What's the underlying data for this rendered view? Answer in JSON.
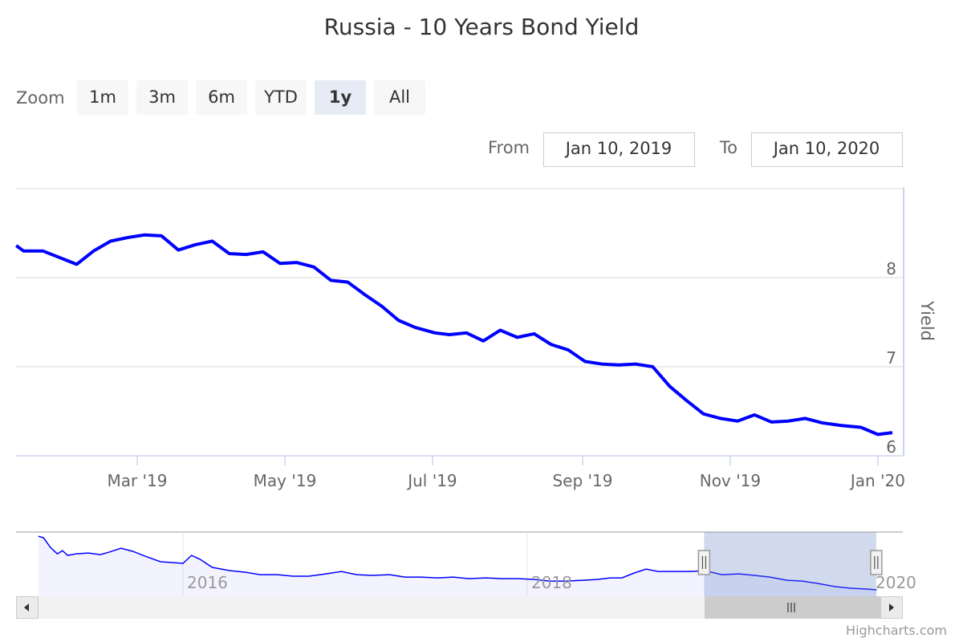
{
  "chart_data": {
    "type": "line",
    "title": "Russia - 10 Years Bond Yield",
    "ylabel": "Yield",
    "xlabel": "",
    "ylim": [
      6,
      9
    ],
    "yticks": [
      "6",
      "7",
      "8"
    ],
    "grid": true,
    "xticks": [
      {
        "date": "2019-03-01",
        "label": "Mar '19"
      },
      {
        "date": "2019-05-01",
        "label": "May '19"
      },
      {
        "date": "2019-07-01",
        "label": "Jul '19"
      },
      {
        "date": "2019-09-01",
        "label": "Sep '19"
      },
      {
        "date": "2019-11-01",
        "label": "Nov '19"
      },
      {
        "date": "2020-01-01",
        "label": "Jan '20"
      }
    ],
    "series": [
      {
        "name": "Yield",
        "color": "#0000ff",
        "points": [
          [
            "2019-01-10",
            8.36
          ],
          [
            "2019-01-13",
            8.3
          ],
          [
            "2019-01-21",
            8.3
          ],
          [
            "2019-02-04",
            8.15
          ],
          [
            "2019-02-11",
            8.3
          ],
          [
            "2019-02-18",
            8.41
          ],
          [
            "2019-02-25",
            8.45
          ],
          [
            "2019-03-04",
            8.48
          ],
          [
            "2019-03-11",
            8.47
          ],
          [
            "2019-03-18",
            8.31
          ],
          [
            "2019-03-25",
            8.37
          ],
          [
            "2019-04-01",
            8.41
          ],
          [
            "2019-04-08",
            8.27
          ],
          [
            "2019-04-15",
            8.26
          ],
          [
            "2019-04-22",
            8.29
          ],
          [
            "2019-04-29",
            8.16
          ],
          [
            "2019-05-06",
            8.17
          ],
          [
            "2019-05-13",
            8.12
          ],
          [
            "2019-05-20",
            7.97
          ],
          [
            "2019-05-27",
            7.95
          ],
          [
            "2019-06-03",
            7.81
          ],
          [
            "2019-06-10",
            7.68
          ],
          [
            "2019-06-17",
            7.52
          ],
          [
            "2019-06-24",
            7.44
          ],
          [
            "2019-07-02",
            7.38
          ],
          [
            "2019-07-08",
            7.36
          ],
          [
            "2019-07-15",
            7.38
          ],
          [
            "2019-07-22",
            7.29
          ],
          [
            "2019-07-29",
            7.41
          ],
          [
            "2019-08-05",
            7.33
          ],
          [
            "2019-08-12",
            7.37
          ],
          [
            "2019-08-19",
            7.25
          ],
          [
            "2019-08-26",
            7.19
          ],
          [
            "2019-09-02",
            7.06
          ],
          [
            "2019-09-09",
            7.03
          ],
          [
            "2019-09-16",
            7.02
          ],
          [
            "2019-09-23",
            7.03
          ],
          [
            "2019-09-30",
            7.0
          ],
          [
            "2019-10-07",
            6.78
          ],
          [
            "2019-10-14",
            6.62
          ],
          [
            "2019-10-21",
            6.47
          ],
          [
            "2019-10-28",
            6.42
          ],
          [
            "2019-11-04",
            6.39
          ],
          [
            "2019-11-11",
            6.46
          ],
          [
            "2019-11-18",
            6.38
          ],
          [
            "2019-11-25",
            6.39
          ],
          [
            "2019-12-02",
            6.42
          ],
          [
            "2019-12-09",
            6.37
          ],
          [
            "2019-12-17",
            6.34
          ],
          [
            "2019-12-25",
            6.32
          ],
          [
            "2020-01-01",
            6.24
          ],
          [
            "2020-01-07",
            6.26
          ]
        ]
      }
    ],
    "navigator": {
      "xlabels": [
        "2016",
        "2018",
        "2020"
      ],
      "ylim": [
        5.5,
        12.9
      ],
      "selected_range": [
        "2019-01-10",
        "2020-01-10"
      ],
      "points": [
        [
          2015.16,
          12.42
        ],
        [
          2015.19,
          12.24
        ],
        [
          2015.23,
          11.13
        ],
        [
          2015.27,
          10.39
        ],
        [
          2015.3,
          10.76
        ],
        [
          2015.33,
          10.21
        ],
        [
          2015.38,
          10.39
        ],
        [
          2015.45,
          10.48
        ],
        [
          2015.52,
          10.3
        ],
        [
          2015.57,
          10.58
        ],
        [
          2015.64,
          11.04
        ],
        [
          2015.71,
          10.67
        ],
        [
          2015.78,
          10.12
        ],
        [
          2015.87,
          9.48
        ],
        [
          2015.94,
          9.39
        ],
        [
          2016.0,
          9.29
        ],
        [
          2016.05,
          10.21
        ],
        [
          2016.1,
          9.75
        ],
        [
          2016.17,
          8.83
        ],
        [
          2016.27,
          8.46
        ],
        [
          2016.36,
          8.27
        ],
        [
          2016.45,
          7.99
        ],
        [
          2016.55,
          7.99
        ],
        [
          2016.64,
          7.81
        ],
        [
          2016.73,
          7.81
        ],
        [
          2016.83,
          8.08
        ],
        [
          2016.92,
          8.36
        ],
        [
          2017.01,
          7.99
        ],
        [
          2017.1,
          7.9
        ],
        [
          2017.2,
          7.99
        ],
        [
          2017.29,
          7.71
        ],
        [
          2017.38,
          7.71
        ],
        [
          2017.48,
          7.62
        ],
        [
          2017.57,
          7.71
        ],
        [
          2017.66,
          7.53
        ],
        [
          2017.76,
          7.62
        ],
        [
          2017.85,
          7.53
        ],
        [
          2017.94,
          7.53
        ],
        [
          2018.04,
          7.44
        ],
        [
          2018.13,
          7.25
        ],
        [
          2018.22,
          7.25
        ],
        [
          2018.32,
          7.34
        ],
        [
          2018.41,
          7.44
        ],
        [
          2018.48,
          7.62
        ],
        [
          2018.55,
          7.62
        ],
        [
          2018.62,
          8.17
        ],
        [
          2018.69,
          8.63
        ],
        [
          2018.76,
          8.36
        ],
        [
          2018.85,
          8.36
        ],
        [
          2018.95,
          8.36
        ],
        [
          2019.03,
          8.46
        ],
        [
          2019.13,
          7.99
        ],
        [
          2019.23,
          8.08
        ],
        [
          2019.32,
          7.9
        ],
        [
          2019.41,
          7.71
        ],
        [
          2019.51,
          7.34
        ],
        [
          2019.6,
          7.25
        ],
        [
          2019.69,
          6.97
        ],
        [
          2019.79,
          6.61
        ],
        [
          2019.88,
          6.42
        ],
        [
          2019.97,
          6.33
        ],
        [
          2020.03,
          6.24
        ]
      ]
    }
  },
  "range_selector": {
    "zoom_label": "Zoom",
    "buttons": [
      "1m",
      "3m",
      "6m",
      "YTD",
      "1y",
      "All"
    ],
    "selected": "1y",
    "from_label": "From",
    "from_value": "Jan 10, 2019",
    "to_label": "To",
    "to_value": "Jan 10, 2020"
  },
  "credits": "Highcharts.com",
  "colors": {
    "line": "#0000ff",
    "selected_button": "#e6ebf5",
    "button": "#f7f7f7",
    "text": "#333333",
    "axis_label": "#666666"
  }
}
